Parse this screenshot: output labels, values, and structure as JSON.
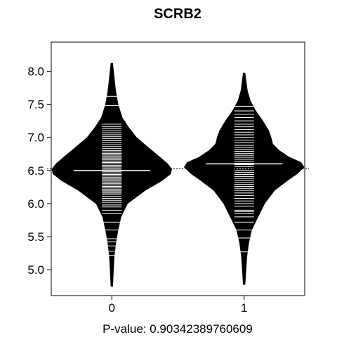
{
  "chart_data": {
    "type": "beanplot",
    "title": "SCRB2",
    "xlabel": "P-value: 0.90342389760609",
    "ylabel": "",
    "categories": [
      "0",
      "1"
    ],
    "x_tick_labels": [
      "0",
      "1"
    ],
    "y_tick_labels": [
      "5.0",
      "5.5",
      "6.0",
      "6.5",
      "7.0",
      "7.5",
      "8.0"
    ],
    "y_ticks": [
      5.0,
      5.5,
      6.0,
      6.5,
      7.0,
      7.5,
      8.0
    ],
    "ylim": [
      4.61,
      8.44
    ],
    "overall_mean": 6.53,
    "grid": false,
    "bean_color": "#000000",
    "line_color": "#ffffff",
    "series": [
      {
        "category": "0",
        "range": [
          4.75,
          8.12
        ],
        "mean": 6.5,
        "density": [
          [
            4.75,
            0.0
          ],
          [
            5.0,
            0.012
          ],
          [
            5.2,
            0.024
          ],
          [
            5.4,
            0.05
          ],
          [
            5.6,
            0.09
          ],
          [
            5.8,
            0.14
          ],
          [
            6.0,
            0.25
          ],
          [
            6.2,
            0.55
          ],
          [
            6.35,
            0.84
          ],
          [
            6.45,
            0.98
          ],
          [
            6.52,
            1.0
          ],
          [
            6.6,
            0.93
          ],
          [
            6.7,
            0.8
          ],
          [
            6.85,
            0.6
          ],
          [
            7.0,
            0.4
          ],
          [
            7.15,
            0.27
          ],
          [
            7.3,
            0.16
          ],
          [
            7.5,
            0.09
          ],
          [
            7.7,
            0.05
          ],
          [
            7.9,
            0.025
          ],
          [
            8.12,
            0.0
          ]
        ],
        "observations": [
          5.22,
          5.28,
          5.36,
          5.42,
          5.47,
          5.6,
          5.72,
          5.85,
          5.9,
          5.95,
          5.98,
          6.02,
          6.05,
          6.08,
          6.11,
          6.14,
          6.16,
          6.18,
          6.2,
          6.22,
          6.24,
          6.26,
          6.28,
          6.3,
          6.32,
          6.34,
          6.36,
          6.38,
          6.4,
          6.42,
          6.44,
          6.46,
          6.48,
          6.5,
          6.52,
          6.54,
          6.56,
          6.58,
          6.6,
          6.62,
          6.64,
          6.66,
          6.68,
          6.7,
          6.72,
          6.74,
          6.76,
          6.78,
          6.8,
          6.83,
          6.86,
          6.89,
          6.92,
          6.95,
          6.98,
          7.01,
          7.04,
          7.07,
          7.1,
          7.13,
          7.16,
          7.2,
          7.48,
          7.62
        ]
      },
      {
        "category": "1",
        "range": [
          4.78,
          7.97
        ],
        "mean": 6.6,
        "density": [
          [
            4.78,
            0.0
          ],
          [
            5.0,
            0.015
          ],
          [
            5.2,
            0.03
          ],
          [
            5.4,
            0.06
          ],
          [
            5.6,
            0.11
          ],
          [
            5.8,
            0.22
          ],
          [
            6.0,
            0.33
          ],
          [
            6.2,
            0.5
          ],
          [
            6.35,
            0.72
          ],
          [
            6.45,
            0.88
          ],
          [
            6.55,
            1.0
          ],
          [
            6.62,
            0.95
          ],
          [
            6.7,
            0.75
          ],
          [
            6.8,
            0.58
          ],
          [
            6.9,
            0.47
          ],
          [
            7.0,
            0.44
          ],
          [
            7.1,
            0.4
          ],
          [
            7.25,
            0.3
          ],
          [
            7.4,
            0.18
          ],
          [
            7.55,
            0.09
          ],
          [
            7.7,
            0.04
          ],
          [
            7.97,
            0.0
          ]
        ],
        "observations": [
          5.27,
          5.48,
          5.6,
          5.72,
          5.8,
          5.85,
          5.88,
          5.9,
          5.96,
          6.0,
          6.04,
          6.08,
          6.12,
          6.16,
          6.2,
          6.23,
          6.26,
          6.29,
          6.32,
          6.35,
          6.38,
          6.41,
          6.44,
          6.47,
          6.5,
          6.53,
          6.56,
          6.59,
          6.61,
          6.64,
          6.67,
          6.7,
          6.73,
          6.76,
          6.79,
          6.82,
          6.85,
          6.88,
          6.92,
          6.96,
          7.0,
          7.04,
          7.08,
          7.12,
          7.16,
          7.2,
          7.25,
          7.3,
          7.35,
          7.4,
          7.47
        ]
      }
    ]
  }
}
